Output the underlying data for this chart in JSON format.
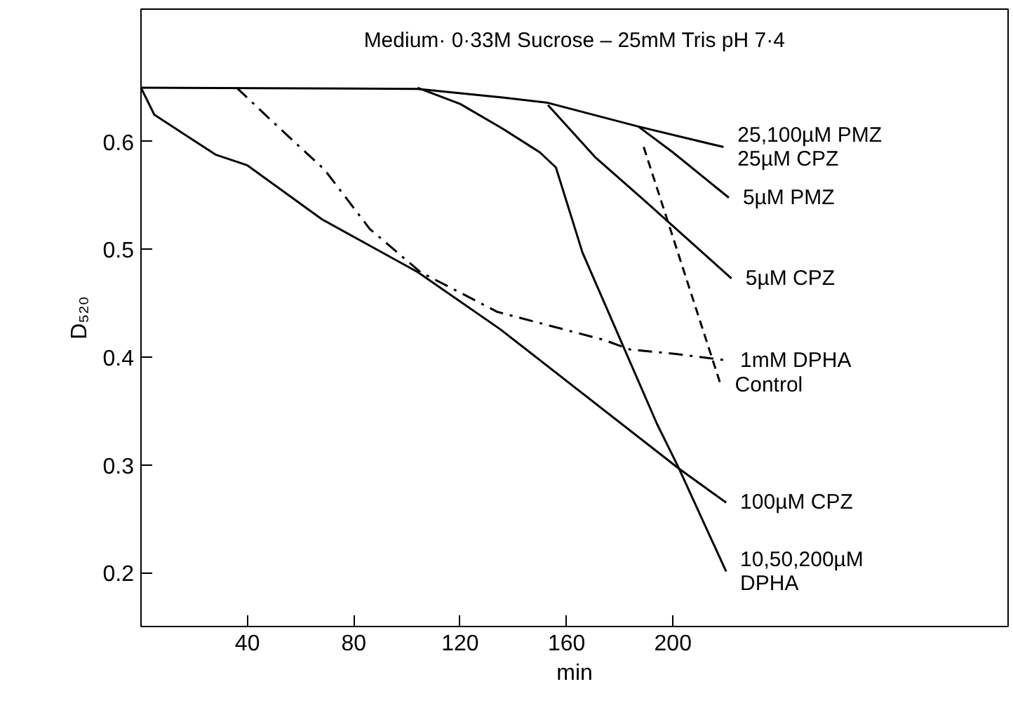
{
  "chart_data": {
    "type": "line",
    "title": "Medium· 0·33M Sucrose – 25mM Tris pH 7·4",
    "xlabel": "min",
    "ylabel": "D₅₂₀",
    "xlim": [
      0,
      326
    ],
    "ylim": [
      0.15,
      0.723
    ],
    "xticks": [
      40,
      80,
      120,
      160,
      200
    ],
    "yticks": [
      0.2,
      0.3,
      0.4,
      0.5,
      0.6
    ],
    "grid": false,
    "marker": "none",
    "series": [
      {
        "name": "25,100µM PMZ\n25µM CPZ",
        "color": "#000000",
        "line_style": "solid",
        "x": [
          0,
          104,
          136,
          153,
          187,
          219
        ],
        "values": [
          0.65,
          0.649,
          0.641,
          0.636,
          0.614,
          0.595
        ]
      },
      {
        "name": "5µM PMZ",
        "color": "#000000",
        "line_style": "solid",
        "x": [
          187,
          200,
          221
        ],
        "values": [
          0.614,
          0.59,
          0.548
        ]
      },
      {
        "name": "5µM CPZ",
        "color": "#000000",
        "line_style": "solid",
        "x": [
          153,
          171,
          189,
          222
        ],
        "values": [
          0.634,
          0.585,
          0.546,
          0.473
        ]
      },
      {
        "name": "1mM DPHA",
        "color": "#000000",
        "line_style": "dashdot",
        "x": [
          36,
          51,
          69,
          86,
          105,
          134,
          174,
          184,
          201,
          220
        ],
        "values": [
          0.65,
          0.615,
          0.574,
          0.519,
          0.479,
          0.442,
          0.416,
          0.407,
          0.403,
          0.397
        ]
      },
      {
        "name": "Control",
        "color": "#000000",
        "line_style": "dashed",
        "x": [
          189,
          218
        ],
        "values": [
          0.595,
          0.374
        ]
      },
      {
        "name": "100µM CPZ",
        "color": "#000000",
        "line_style": "solid",
        "x": [
          0,
          5,
          28,
          40,
          68,
          104,
          135,
          202,
          220
        ],
        "values": [
          0.65,
          0.625,
          0.588,
          0.578,
          0.528,
          0.479,
          0.426,
          0.297,
          0.265
        ]
      },
      {
        "name": "10,50,200µM\nDPHA",
        "color": "#000000",
        "line_style": "solid",
        "x": [
          104,
          120,
          136,
          150,
          156,
          166,
          194,
          202,
          220
        ],
        "values": [
          0.65,
          0.635,
          0.612,
          0.59,
          0.576,
          0.497,
          0.338,
          0.298,
          0.201
        ]
      }
    ]
  }
}
